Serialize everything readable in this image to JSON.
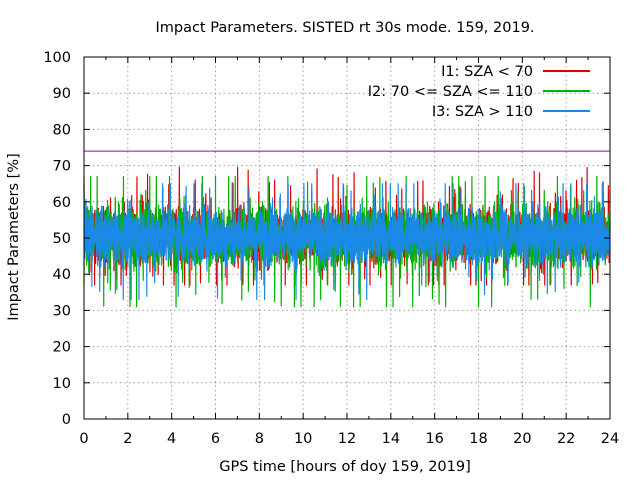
{
  "chart_data": {
    "type": "line",
    "title": "Impact Parameters. SISTED rt 30s mode. 159, 2019.",
    "xlabel": "GPS time [hours of doy 159, 2019]",
    "ylabel": "Impact Parameters [%]",
    "xlim": [
      0,
      24
    ],
    "ylim": [
      0,
      100
    ],
    "x_ticks": [
      "0",
      "2",
      "4",
      "6",
      "8",
      "10",
      "12",
      "14",
      "16",
      "18",
      "20",
      "22",
      "24"
    ],
    "y_ticks": [
      "0",
      "10",
      "20",
      "30",
      "40",
      "50",
      "60",
      "70",
      "80",
      "90",
      "100"
    ],
    "grid": true,
    "legend_position": "top-right",
    "threshold": {
      "value": 74,
      "color": "#9400d3"
    },
    "series": [
      {
        "name": "I1: SZA < 70",
        "color": "#e00000",
        "mean": 50.5,
        "typical_range": [
          43,
          58
        ],
        "extremes": [
          37,
          69.5
        ]
      },
      {
        "name": "I2: 70 <= SZA <= 110",
        "color": "#00b000",
        "mean": 50.5,
        "typical_range": [
          42,
          59
        ],
        "extremes": [
          31,
          67
        ]
      },
      {
        "name": "I3: SZA > 110",
        "color": "#1a8ae6",
        "mean": 50.5,
        "typical_range": [
          43,
          58
        ],
        "extremes": [
          33,
          65
        ]
      }
    ]
  }
}
